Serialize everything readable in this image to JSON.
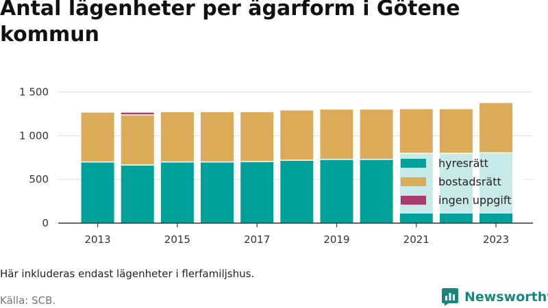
{
  "header": {
    "title": "Antal lägenheter per ägarform i Götene kommun"
  },
  "footer": {
    "note": "Här inkluderas endast lägenheter i flerfamiljshus.",
    "source": "Källa: SCB.",
    "brand": "Newsworthy"
  },
  "colors": {
    "brand": "#16877f",
    "grid": "#dddddd"
  },
  "chart_data": {
    "type": "bar",
    "stacked": true,
    "title": "Antal lägenheter per ägarform i Götene kommun",
    "xlabel": "",
    "ylabel": "",
    "categories": [
      "2013",
      "2014",
      "2015",
      "2016",
      "2017",
      "2018",
      "2019",
      "2020",
      "2021",
      "2022",
      "2023"
    ],
    "x_tick_labels": [
      "2013",
      "2015",
      "2017",
      "2019",
      "2021",
      "2023"
    ],
    "y_ticks": [
      0,
      500,
      1000,
      1500
    ],
    "y_tick_labels": [
      "0",
      "500",
      "1 000",
      "1 500"
    ],
    "ylim": [
      0,
      1600
    ],
    "grid": true,
    "legend_position": "bottom-right",
    "series": [
      {
        "name": "hyresrätt",
        "color": "#00a19a",
        "values": [
          700,
          665,
          700,
          700,
          705,
          720,
          730,
          730,
          800,
          800,
          805
        ]
      },
      {
        "name": "bostadsrätt",
        "color": "#dbab5a",
        "values": [
          565,
          575,
          570,
          570,
          565,
          570,
          570,
          570,
          505,
          505,
          570
        ]
      },
      {
        "name": "ingen uppgift",
        "color": "#a83c6a",
        "values": [
          0,
          25,
          0,
          0,
          0,
          0,
          0,
          0,
          0,
          0,
          0
        ]
      }
    ]
  }
}
